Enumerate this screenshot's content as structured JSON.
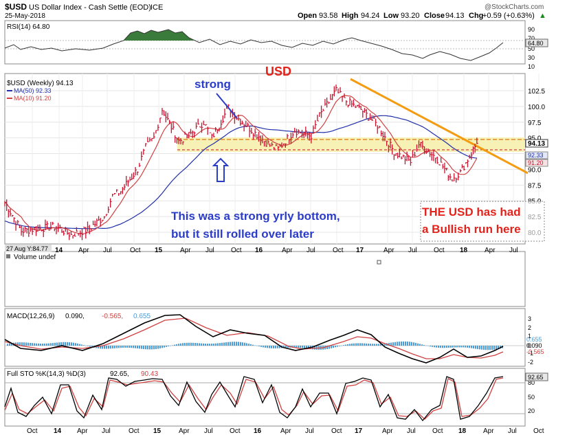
{
  "header": {
    "symbol": "$USD",
    "name": "US Dollar Index - Cash Settle (EOD)",
    "exchange": "ICE",
    "date": "25-May-2018",
    "watermark": "@StockCharts.com",
    "open_label": "Open",
    "open": "93.58",
    "high_label": "High",
    "high": "94.24",
    "low_label": "Low",
    "low": "93.20",
    "close_label": "Close",
    "close": "94.13",
    "chg_label": "Chg",
    "chg": "+0.59 (+0.63%)",
    "chg_arrow": "▲"
  },
  "colors": {
    "price": "#c8102e",
    "ma50": "#1f2fa8",
    "ma10": "#d04040",
    "rsi_fill": "#3a7a3a",
    "hist": "#4a9bd6",
    "trend": "#f39c12",
    "support": "#f7f1b5",
    "annot_red": "#e3231b",
    "annot_blue": "#2a3cc8"
  },
  "rsi": {
    "label": "RSI(14) 64.80",
    "ticks": [
      "90",
      "70",
      "50",
      "30",
      "10"
    ],
    "value_badge": "64.80"
  },
  "price": {
    "legend": "$USD (Weekly) 94.13",
    "ma50_label": "MA(50) 92.33",
    "ma10_label": "MA(10) 91.20",
    "y_ticks": [
      "102.5",
      "100.0",
      "97.5",
      "95.0",
      "92.5",
      "90.0",
      "87.5",
      "85.0",
      "82.5",
      "80.0"
    ],
    "badges": [
      "94.13",
      "92.33",
      "91.20"
    ],
    "x_labels": [
      "14",
      "Apr",
      "Jul",
      "Oct",
      "15",
      "Apr",
      "Jul",
      "Oct",
      "16",
      "Apr",
      "Jul",
      "Oct",
      "17",
      "Apr",
      "Jul",
      "Oct",
      "18",
      "Apr",
      "Jul"
    ],
    "x_axis_note": "27 Aug Y:84.77"
  },
  "annotations": {
    "title": "USD",
    "strong": "strong",
    "bottom_line1": "This was a strong yrly bottom,",
    "bottom_line2": "but it still rolled over later",
    "bull_line1": "THE USD has had",
    "bull_line2": "a Bullish run here"
  },
  "volume": {
    "label": "Volume undef"
  },
  "macd": {
    "label": "MACD(12,26,9)",
    "v1": "0.090,",
    "v2": "-0.565,",
    "v3": "0.655",
    "ticks": [
      "3",
      "2",
      "1",
      "0",
      "-1",
      "-2"
    ],
    "badges": [
      "0.655",
      "0.090",
      "-0.565"
    ]
  },
  "sto": {
    "label": "Full STO %K(14,3) %D(3)",
    "k": "92.65,",
    "d": "90.43",
    "ticks": [
      "80",
      "50",
      "20"
    ],
    "badge": "92.65"
  },
  "bottom_axis": {
    "labels": [
      "Oct",
      "14",
      "Apr",
      "Jul",
      "Oct",
      "15",
      "Apr",
      "Jul",
      "Oct",
      "16",
      "Apr",
      "Jul",
      "Oct",
      "17",
      "Apr",
      "Jul",
      "Oct",
      "18",
      "Apr",
      "Jul",
      "Oct"
    ]
  },
  "chart_data": {
    "type": "line",
    "title": "$USD US Dollar Index - Cash Settle (EOD) ICE",
    "series": [
      {
        "name": "$USD (Weekly)",
        "x": [
          "2013-08",
          "2013-10",
          "2013-12",
          "2014-02",
          "2014-04",
          "2014-06",
          "2014-08",
          "2014-09",
          "2014-10",
          "2014-12",
          "2015-01",
          "2015-02",
          "2015-03",
          "2015-05",
          "2015-06",
          "2015-08",
          "2015-09",
          "2015-11",
          "2015-12",
          "2016-02",
          "2016-04",
          "2016-05",
          "2016-07",
          "2016-09",
          "2016-10",
          "2016-12",
          "2017-01",
          "2017-03",
          "2017-05",
          "2017-07",
          "2017-09",
          "2017-10",
          "2017-12",
          "2018-02",
          "2018-03",
          "2018-05"
        ],
        "values": [
          84.77,
          80.2,
          80.6,
          80.9,
          79.6,
          80.4,
          82.5,
          85.8,
          86.5,
          90.0,
          93.5,
          95.0,
          99.5,
          94.5,
          95.2,
          97.5,
          95.0,
          99.8,
          98.3,
          96.0,
          93.8,
          93.2,
          96.2,
          95.3,
          98.5,
          102.5,
          101.0,
          99.5,
          97.0,
          92.8,
          91.2,
          94.0,
          92.0,
          88.5,
          89.5,
          94.13
        ]
      },
      {
        "name": "MA(50)",
        "last": 92.33
      },
      {
        "name": "MA(10)",
        "last": 91.2
      }
    ],
    "ylim": [
      78.5,
      104.5
    ],
    "grid": true
  }
}
